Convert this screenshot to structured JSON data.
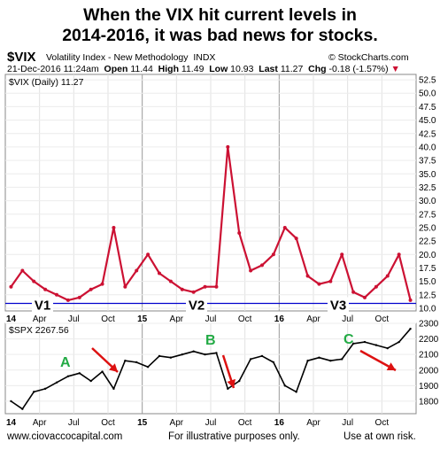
{
  "title_line1": "When the VIX hit current levels in",
  "title_line2": "2014-2016, it was bad news for stocks.",
  "header": {
    "symbol": "$VIX",
    "name": "Volatility Index - New Methodology",
    "exchange": "INDX",
    "watermark": "© StockCharts.com",
    "date": "21-Dec-2016 11:24am",
    "open_label": "Open",
    "open": "11.44",
    "high_label": "High",
    "high": "11.49",
    "low_label": "Low",
    "low": "10.93",
    "last_label": "Last",
    "last": "11.27",
    "chg_label": "Chg",
    "chg": "-0.18 (-1.57%)",
    "legend_vix": "$VIX (Daily) 11.27",
    "legend_spx": "$SPX 2267.56"
  },
  "labels": {
    "v1": "V1",
    "v2": "V2",
    "v3": "V3",
    "a": "A",
    "b": "B",
    "c": "C"
  },
  "footer": {
    "left": "www.ciovaccocapital.com",
    "center": "For illustrative purposes only.",
    "right": "Use at own risk."
  },
  "colors": {
    "vix": "#cc1133",
    "line": "#0000cc",
    "spx": "#000000",
    "green": "#22aa44",
    "arrow": "#dd1111"
  },
  "chart_data": [
    {
      "type": "line",
      "series": [
        {
          "name": "$VIX (Daily)",
          "x": [
            "2014-01",
            "2014-02",
            "2014-03",
            "2014-04",
            "2014-05",
            "2014-06",
            "2014-07",
            "2014-08",
            "2014-09",
            "2014-10",
            "2014-11",
            "2014-12",
            "2015-01",
            "2015-02",
            "2015-03",
            "2015-04",
            "2015-05",
            "2015-06",
            "2015-07",
            "2015-08",
            "2015-09",
            "2015-10",
            "2015-11",
            "2015-12",
            "2016-01",
            "2016-02",
            "2016-03",
            "2016-04",
            "2016-05",
            "2016-06",
            "2016-07",
            "2016-08",
            "2016-09",
            "2016-10",
            "2016-11",
            "2016-12"
          ],
          "values": [
            14,
            17,
            15,
            13.5,
            12.5,
            11.5,
            12,
            13.5,
            14.5,
            25,
            14,
            17,
            20,
            16.5,
            15,
            13.5,
            13,
            14,
            14,
            40,
            24,
            17,
            18,
            20,
            25,
            23,
            16,
            14.5,
            15,
            20,
            13,
            12,
            14,
            16,
            20,
            11.5
          ]
        }
      ],
      "hline": 10.9,
      "ylim": [
        9.5,
        53.5
      ],
      "y_ticks": [
        "10.0",
        "12.5",
        "15.0",
        "17.5",
        "20.0",
        "22.5",
        "25.0",
        "27.5",
        "30.0",
        "32.5",
        "35.0",
        "37.5",
        "40.0",
        "42.5",
        "45.0",
        "47.5",
        "50.0",
        "52.5"
      ],
      "x_ticks": [
        "14",
        "Apr",
        "Jul",
        "Oct",
        "15",
        "Apr",
        "Jul",
        "Oct",
        "16",
        "Apr",
        "Jul",
        "Oct"
      ]
    },
    {
      "type": "line",
      "series": [
        {
          "name": "$SPX",
          "x": [
            "2014-01",
            "2014-02",
            "2014-03",
            "2014-04",
            "2014-05",
            "2014-06",
            "2014-07",
            "2014-08",
            "2014-09",
            "2014-10",
            "2014-11",
            "2014-12",
            "2015-01",
            "2015-02",
            "2015-03",
            "2015-04",
            "2015-05",
            "2015-06",
            "2015-07",
            "2015-08",
            "2015-09",
            "2015-10",
            "2015-11",
            "2015-12",
            "2016-01",
            "2016-02",
            "2016-03",
            "2016-04",
            "2016-05",
            "2016-06",
            "2016-07",
            "2016-08",
            "2016-09",
            "2016-10",
            "2016-11",
            "2016-12"
          ],
          "values": [
            1800,
            1750,
            1860,
            1880,
            1920,
            1960,
            1980,
            1930,
            1990,
            1880,
            2060,
            2050,
            2020,
            2090,
            2080,
            2100,
            2120,
            2100,
            2110,
            1880,
            1930,
            2070,
            2090,
            2050,
            1900,
            1860,
            2060,
            2080,
            2060,
            2070,
            2170,
            2180,
            2160,
            2140,
            2180,
            2265
          ]
        }
      ],
      "ylim": [
        1720,
        2300
      ],
      "y_ticks": [
        "1800",
        "1900",
        "2000",
        "2100",
        "2200",
        "2300"
      ],
      "x_ticks": [
        "14",
        "Apr",
        "Jul",
        "Oct",
        "15",
        "Apr",
        "Jul",
        "Oct",
        "16",
        "Apr",
        "Jul",
        "Oct"
      ]
    }
  ]
}
